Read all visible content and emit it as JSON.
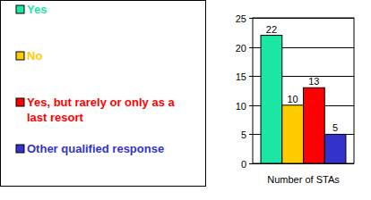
{
  "chart_data": {
    "type": "bar",
    "categories": [
      "Number of STAs"
    ],
    "series": [
      {
        "name": "Yes",
        "color": "#1ce6a3",
        "values": [
          22
        ]
      },
      {
        "name": "No",
        "color": "#ffcc00",
        "values": [
          10
        ]
      },
      {
        "name": "Yes, but rarely or only as a last resort",
        "color": "#ff0000",
        "values": [
          13
        ]
      },
      {
        "name": "Other qualified response",
        "color": "#3333cc",
        "values": [
          5
        ]
      }
    ],
    "ylim": [
      0,
      25
    ],
    "yticks": [
      0,
      5,
      10,
      15,
      20,
      25
    ],
    "grid": true,
    "legend": "left",
    "data_labels": true
  }
}
